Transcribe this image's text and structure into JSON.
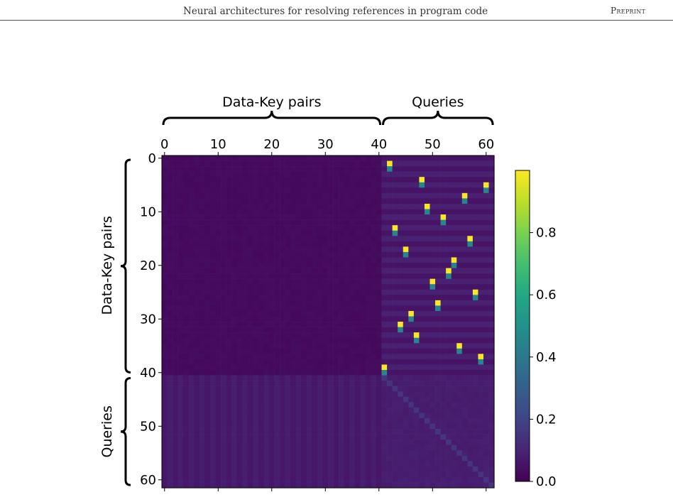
{
  "header": {
    "title": "Neural architectures for resolving references in program code",
    "tag": "Preprint"
  },
  "figure": {
    "top_bracket_labels": [
      "Data-Key pairs",
      "Queries"
    ],
    "left_bracket_labels": [
      "Data-Key pairs",
      "Queries"
    ]
  },
  "chart_data": {
    "type": "heatmap",
    "title": "",
    "matrix_size": 62,
    "groups": [
      {
        "label": "Data-Key pairs",
        "start": 0,
        "end": 40
      },
      {
        "label": "Queries",
        "start": 41,
        "end": 61
      }
    ],
    "x_ticks": [
      0,
      10,
      20,
      30,
      40,
      50,
      60
    ],
    "y_ticks": [
      0,
      10,
      20,
      30,
      40,
      50,
      60
    ],
    "x_tick_position": "top",
    "colormap": "viridis",
    "colorbar": {
      "range": [
        0.0,
        1.0
      ],
      "ticks": [
        0.0,
        0.2,
        0.4,
        0.6,
        0.8
      ]
    },
    "peaks": [
      {
        "row": 1,
        "col": 42
      },
      {
        "row": 4,
        "col": 48
      },
      {
        "row": 5,
        "col": 60
      },
      {
        "row": 7,
        "col": 56
      },
      {
        "row": 9,
        "col": 49
      },
      {
        "row": 11,
        "col": 52
      },
      {
        "row": 13,
        "col": 43
      },
      {
        "row": 15,
        "col": 57
      },
      {
        "row": 17,
        "col": 45
      },
      {
        "row": 19,
        "col": 54
      },
      {
        "row": 21,
        "col": 53
      },
      {
        "row": 23,
        "col": 50
      },
      {
        "row": 25,
        "col": 58
      },
      {
        "row": 27,
        "col": 51
      },
      {
        "row": 29,
        "col": 46
      },
      {
        "row": 31,
        "col": 44
      },
      {
        "row": 33,
        "col": 47
      },
      {
        "row": 35,
        "col": 55
      },
      {
        "row": 37,
        "col": 59
      },
      {
        "row": 39,
        "col": 41
      }
    ],
    "peak_value": 1.0,
    "below_peak_value": 0.45,
    "query_diagonal_value": 0.15,
    "background_value": 0.02
  }
}
